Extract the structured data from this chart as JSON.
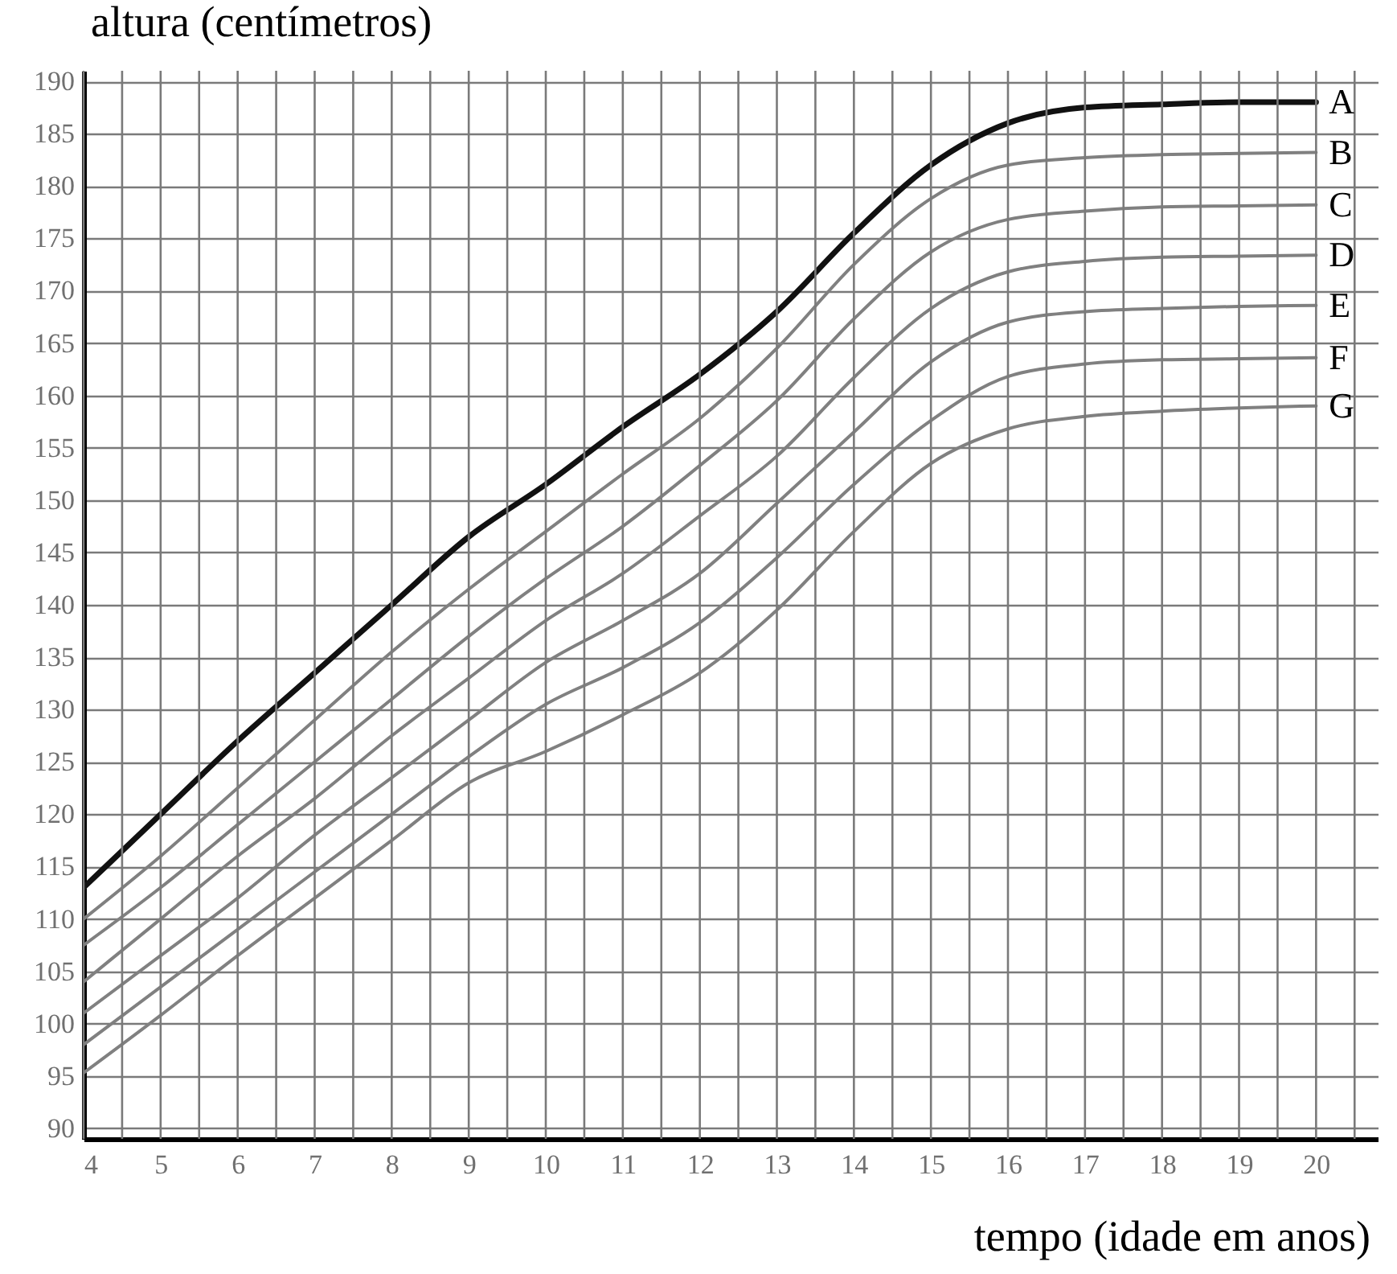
{
  "chart_data": {
    "type": "line",
    "xlabel": "tempo (idade em anos)",
    "ylabel": "altura (centímetros)",
    "x": [
      4,
      5,
      6,
      7,
      8,
      9,
      10,
      11,
      12,
      13,
      14,
      15,
      16,
      17,
      18,
      19,
      20
    ],
    "series": [
      {
        "name": "A",
        "color": "#111111",
        "values": [
          113,
          120,
          127,
          133.5,
          140,
          146.5,
          151.5,
          157,
          162,
          168,
          175.5,
          182,
          186,
          187.5,
          187.8,
          188,
          188
        ]
      },
      {
        "name": "B",
        "color": "#808080",
        "values": [
          110,
          116,
          122.5,
          129,
          135.5,
          141.5,
          147,
          152.5,
          157.8,
          164.5,
          172.5,
          178.8,
          182,
          182.7,
          183,
          183.1,
          183.2
        ]
      },
      {
        "name": "C",
        "color": "#808080",
        "values": [
          107.5,
          113,
          119,
          125,
          131,
          137,
          142.5,
          147.5,
          153.3,
          159.5,
          167.3,
          173.7,
          176.8,
          177.6,
          178,
          178.1,
          178.2
        ]
      },
      {
        "name": "D",
        "color": "#808080",
        "values": [
          104,
          110,
          116,
          121.5,
          127.5,
          133,
          138.5,
          143,
          148.5,
          154.2,
          161.7,
          168.3,
          171.8,
          172.8,
          173.2,
          173.3,
          173.4
        ]
      },
      {
        "name": "E",
        "color": "#808080",
        "values": [
          101,
          106.5,
          112,
          118,
          123.5,
          129,
          134.5,
          138.5,
          143,
          149.7,
          156.5,
          163.2,
          167,
          168,
          168.3,
          168.5,
          168.6
        ]
      },
      {
        "name": "F",
        "color": "#808080",
        "values": [
          98,
          103.5,
          109,
          114.5,
          120,
          125.5,
          130.5,
          134,
          138.3,
          144.5,
          151.5,
          157.6,
          161.8,
          163,
          163.4,
          163.5,
          163.6
        ]
      },
      {
        "name": "G",
        "color": "#808080",
        "values": [
          95.3,
          100.8,
          106.5,
          112,
          117.5,
          123,
          126,
          129.5,
          133.5,
          139.5,
          147,
          153.5,
          156.8,
          158,
          158.5,
          158.8,
          159
        ]
      }
    ],
    "xlim": [
      4,
      20.8
    ],
    "ylim": [
      89,
      191
    ],
    "xticks": [
      4,
      {
        "value": 4.5,
        "label": null
      },
      5,
      {
        "value": 5.5,
        "label": null
      },
      6,
      {
        "value": 6.5,
        "label": null
      },
      7,
      {
        "value": 7.5,
        "label": null
      },
      8,
      {
        "value": 8.5,
        "label": null
      },
      9,
      {
        "value": 9.5,
        "label": null
      },
      10,
      {
        "value": 10.5,
        "label": null
      },
      11,
      {
        "value": 11.5,
        "label": null
      },
      12,
      {
        "value": 12.5,
        "label": null
      },
      13,
      {
        "value": 13.5,
        "label": null
      },
      14,
      {
        "value": 14.5,
        "label": null
      },
      15,
      {
        "value": 15.5,
        "label": null
      },
      16,
      {
        "value": 16.5,
        "label": null
      },
      17,
      {
        "value": 17.5,
        "label": null
      },
      18,
      {
        "value": 18.5,
        "label": null
      },
      19,
      {
        "value": 19.5,
        "label": null
      },
      20,
      {
        "value": 20.5,
        "label": null
      }
    ],
    "yticks": [
      90,
      95,
      100,
      105,
      110,
      115,
      120,
      125,
      130,
      135,
      140,
      145,
      150,
      155,
      160,
      165,
      170,
      175,
      180,
      185,
      190
    ],
    "grid": true,
    "legend": false,
    "marker": "none",
    "line_style": "solid"
  }
}
